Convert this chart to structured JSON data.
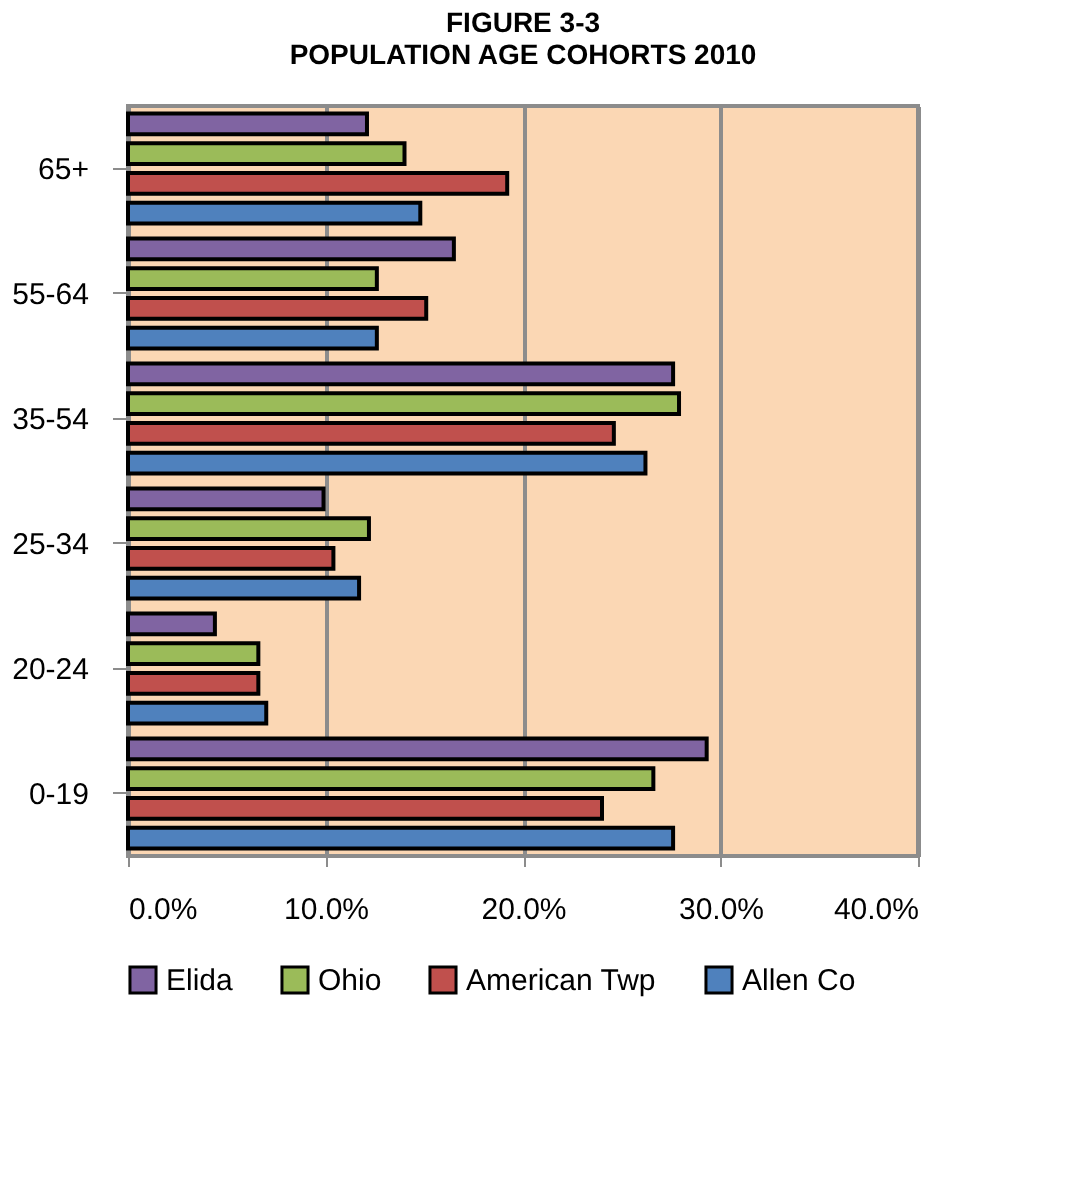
{
  "chart_data": {
    "type": "bar",
    "orientation": "horizontal",
    "title": "FIGURE 3-3\nPOPULATION AGE COHORTS 2010",
    "categories": [
      "65+",
      "55-64",
      "35-54",
      "25-34",
      "20-24",
      "0-19"
    ],
    "series": [
      {
        "name": "Elida",
        "color": "#8064a2",
        "values": [
          12.1,
          16.5,
          27.6,
          9.9,
          4.4,
          29.3
        ]
      },
      {
        "name": "Ohio",
        "color": "#9bbb59",
        "values": [
          14.0,
          12.6,
          27.9,
          12.2,
          6.6,
          26.6
        ]
      },
      {
        "name": "American Twp",
        "color": "#c0504d",
        "values": [
          19.2,
          15.1,
          24.6,
          10.4,
          6.6,
          24.0
        ]
      },
      {
        "name": "Allen Co",
        "color": "#4f81bd",
        "values": [
          14.8,
          12.6,
          26.2,
          11.7,
          7.0,
          27.6
        ]
      }
    ],
    "xlim": [
      0,
      40
    ],
    "xticks": [
      {
        "value": 0,
        "label": "0.0%"
      },
      {
        "value": 10,
        "label": "10.0%"
      },
      {
        "value": 20,
        "label": "20.0%"
      },
      {
        "value": 30,
        "label": "30.0%"
      },
      {
        "value": 40,
        "label": "40.0%"
      }
    ],
    "grid": "x",
    "legend": "bottom"
  }
}
